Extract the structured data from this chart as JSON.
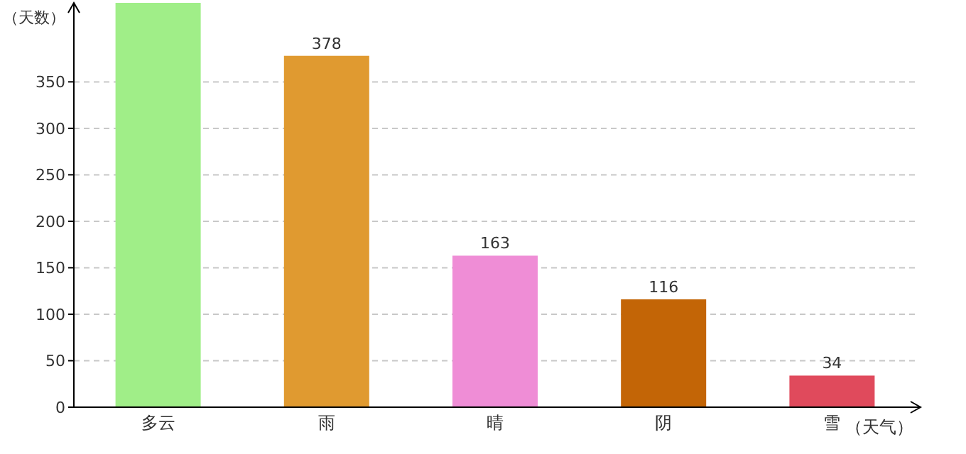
{
  "chart_data": {
    "type": "bar",
    "categories": [
      "多云",
      "雨",
      "晴",
      "阴",
      "雪"
    ],
    "values": [
      435,
      378,
      163,
      116,
      34
    ],
    "colors": [
      "#a0ee88",
      "#e09a30",
      "#ef8dd6",
      "#c36506",
      "#e04a5c"
    ],
    "value_labels": [
      null,
      "378",
      "163",
      "116",
      "34"
    ],
    "xlabel": "（天气）",
    "ylabel": "（天数）",
    "ylim": [
      0,
      435
    ],
    "yticks": [
      0,
      50,
      100,
      150,
      200,
      250,
      300,
      350
    ],
    "grid": "y"
  }
}
